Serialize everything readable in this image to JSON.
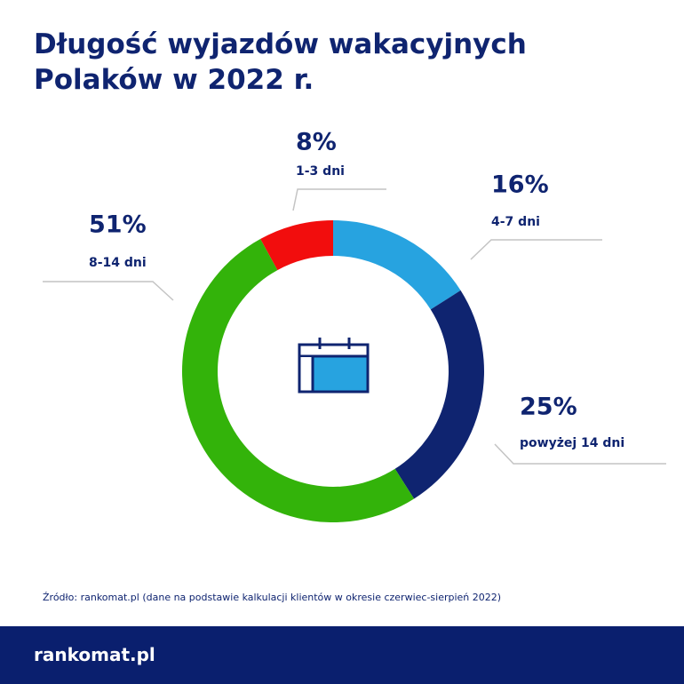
{
  "chart_data": {
    "type": "donut",
    "title": "Długość wyjazdów wakacyjnych Polaków w 2022 r.",
    "categories": [
      "1-3 dni",
      "4-7 dni",
      "powyżej 14 dni",
      "8-14 dni"
    ],
    "values": [
      8,
      16,
      25,
      51
    ],
    "value_labels": [
      "8%",
      "16%",
      "25%",
      "51%"
    ],
    "colors": [
      "#f20d0d",
      "#27a3e0",
      "#0f2470",
      "#33b30a"
    ],
    "source": "Źródło: rankomat.pl (dane na podstawie kalkulacji klientów w okresie czerwiec-sierpień 2022)",
    "logo": "rankomat.pl"
  }
}
